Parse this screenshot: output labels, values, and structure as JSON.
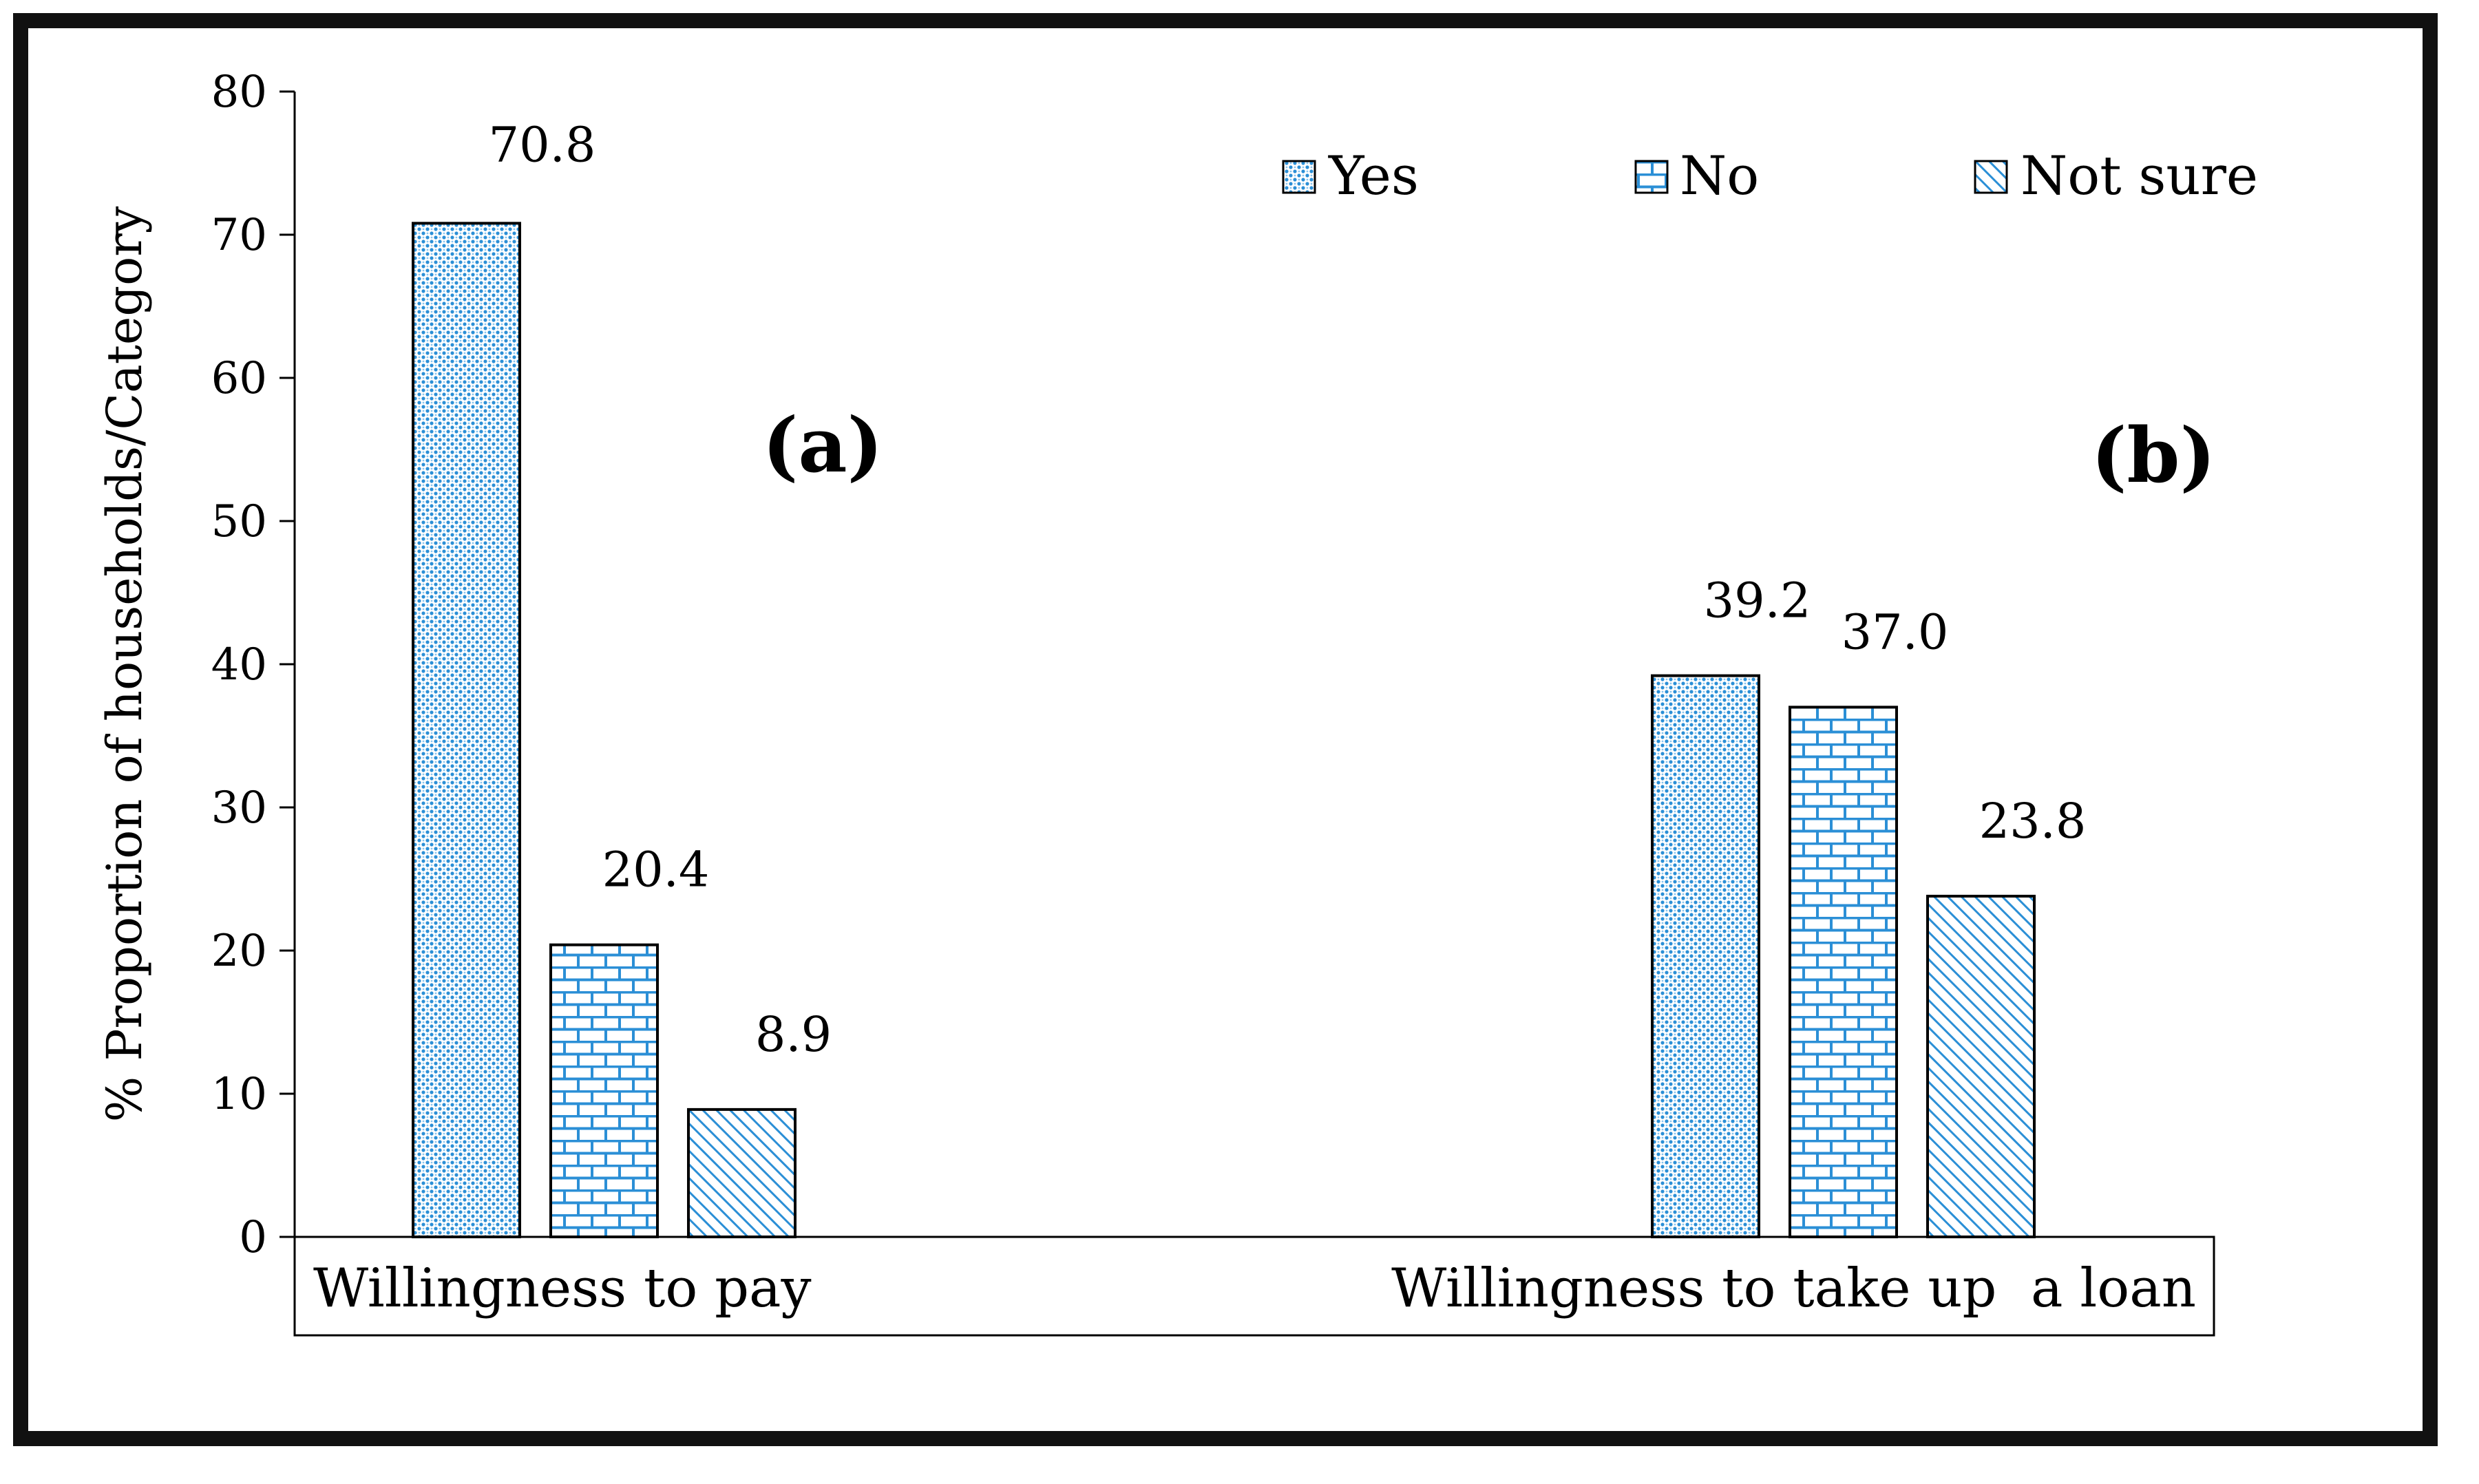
{
  "chart_data": {
    "type": "bar",
    "title": "",
    "xlabel": "",
    "ylabel": "% Proportion of households/Category",
    "ylim": [
      0,
      80
    ],
    "yticks": [
      0,
      10,
      20,
      30,
      40,
      50,
      60,
      70,
      80
    ],
    "grid": false,
    "legend_position": "top-right",
    "categories": [
      "Willingness to pay",
      "Willingness to take up  a loan"
    ],
    "series": [
      {
        "name": "Yes",
        "values": [
          70.8,
          39.2
        ],
        "labels": [
          "70.8",
          "39.2"
        ],
        "pattern": "dots",
        "color": "#2b8fd6"
      },
      {
        "name": "No",
        "values": [
          20.4,
          37.0
        ],
        "labels": [
          "20.4",
          "37.0"
        ],
        "pattern": "bricks",
        "color": "#2b8fd6"
      },
      {
        "name": "Not sure",
        "values": [
          8.9,
          23.8
        ],
        "labels": [
          "8.9",
          "23.8"
        ],
        "pattern": "diagonal",
        "color": "#2b8fd6"
      }
    ],
    "annotations": [
      "(a)",
      "(b)"
    ]
  }
}
